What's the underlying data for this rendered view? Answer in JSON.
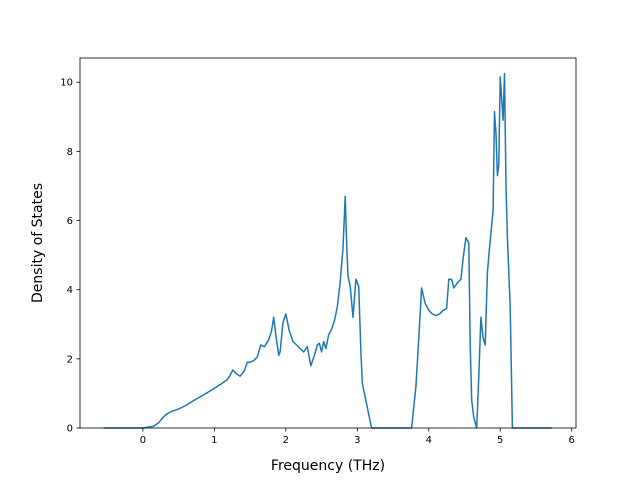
{
  "chart_data": {
    "type": "line",
    "title": "",
    "xlabel": "Frequency (THz)",
    "ylabel": "Density of States",
    "xlim": [
      -0.88,
      6.06
    ],
    "ylim": [
      0,
      10.7
    ],
    "xticks": [
      0,
      1,
      2,
      3,
      4,
      5,
      6
    ],
    "yticks": [
      0,
      2,
      4,
      6,
      8,
      10
    ],
    "grid": false,
    "legend": "none",
    "series": [
      {
        "color": "#1f77b4",
        "x": [
          -0.55,
          -0.3,
          0.0,
          0.15,
          0.22,
          0.28,
          0.33,
          0.4,
          0.5,
          0.6,
          0.7,
          0.8,
          0.9,
          1.0,
          1.1,
          1.18,
          1.22,
          1.26,
          1.3,
          1.36,
          1.42,
          1.46,
          1.5,
          1.55,
          1.6,
          1.65,
          1.7,
          1.76,
          1.8,
          1.83,
          1.86,
          1.9,
          1.92,
          1.96,
          2.0,
          2.05,
          2.1,
          2.15,
          2.2,
          2.25,
          2.3,
          2.35,
          2.4,
          2.44,
          2.47,
          2.5,
          2.53,
          2.56,
          2.6,
          2.64,
          2.68,
          2.72,
          2.76,
          2.8,
          2.83,
          2.85,
          2.87,
          2.9,
          2.94,
          2.98,
          3.02,
          3.05,
          3.07,
          3.1,
          3.13,
          3.16,
          3.2,
          3.25,
          3.3,
          3.76,
          3.82,
          3.86,
          3.9,
          3.95,
          4.0,
          4.05,
          4.1,
          4.15,
          4.2,
          4.25,
          4.28,
          4.32,
          4.35,
          4.4,
          4.45,
          4.48,
          4.52,
          4.56,
          4.58,
          4.6,
          4.63,
          4.67,
          4.7,
          4.73,
          4.76,
          4.79,
          4.82,
          4.85,
          4.9,
          4.92,
          4.94,
          4.96,
          4.98,
          5.0,
          5.04,
          5.06,
          5.08,
          5.1,
          5.14,
          5.17,
          5.2,
          5.5,
          5.72
        ],
        "values": [
          0,
          0,
          0,
          0.05,
          0.15,
          0.3,
          0.4,
          0.48,
          0.55,
          0.65,
          0.78,
          0.9,
          1.02,
          1.15,
          1.28,
          1.4,
          1.52,
          1.68,
          1.58,
          1.5,
          1.65,
          1.9,
          1.9,
          1.95,
          2.05,
          2.4,
          2.35,
          2.55,
          2.8,
          3.2,
          2.7,
          2.1,
          2.2,
          3.05,
          3.3,
          2.8,
          2.5,
          2.4,
          2.3,
          2.2,
          2.35,
          1.8,
          2.1,
          2.4,
          2.45,
          2.2,
          2.5,
          2.3,
          2.7,
          2.85,
          3.1,
          3.5,
          4.2,
          5.2,
          6.7,
          5.4,
          4.4,
          4.1,
          3.2,
          4.3,
          4.1,
          2.2,
          1.3,
          1.0,
          0.7,
          0.4,
          0.0,
          0.0,
          0.0,
          0.0,
          1.2,
          2.6,
          4.05,
          3.6,
          3.4,
          3.3,
          3.25,
          3.3,
          3.4,
          3.45,
          4.3,
          4.3,
          4.05,
          4.2,
          4.3,
          4.9,
          5.5,
          5.35,
          2.4,
          0.8,
          0.3,
          0.0,
          1.5,
          3.2,
          2.6,
          2.4,
          4.5,
          5.2,
          6.3,
          9.15,
          8.5,
          7.3,
          7.6,
          10.15,
          8.9,
          10.25,
          7.0,
          5.5,
          3.5,
          0.0,
          0.0,
          0.0,
          0.0
        ]
      }
    ]
  }
}
